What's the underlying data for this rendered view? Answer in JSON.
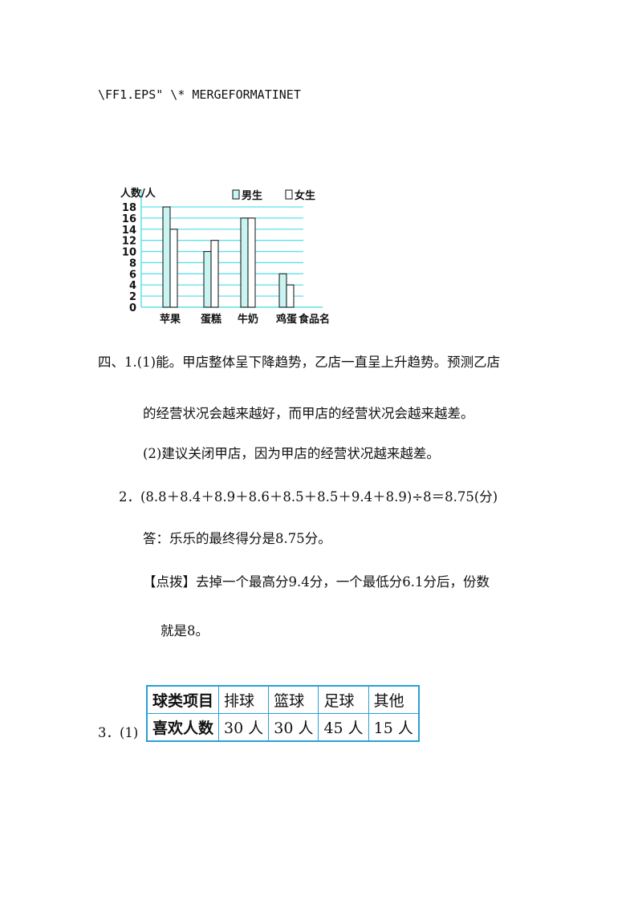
{
  "field_code": "\\FF1.EPS\" \\* MERGEFORMATINET",
  "chart_data": {
    "type": "bar",
    "ylabel": "人数/人",
    "xlabel": "食品名",
    "categories": [
      "苹果",
      "蛋糕",
      "牛奶",
      "鸡蛋"
    ],
    "series": [
      {
        "name": "男生",
        "values": [
          18,
          10,
          16,
          6
        ],
        "color": "#c8f4f2"
      },
      {
        "name": "女生",
        "values": [
          14,
          12,
          16,
          4
        ],
        "color": "#ffffff"
      }
    ],
    "yticks": [
      0,
      2,
      4,
      6,
      8,
      10,
      12,
      14,
      16,
      18
    ],
    "ylim": [
      0,
      18
    ],
    "grid": true,
    "grid_color": "#5ee0ea",
    "legend": "top-right"
  },
  "answers": {
    "q4_1_1a": "四、1.(1)能。甲店整体呈下降趋势，乙店一直呈上升趋势。预测乙店",
    "q4_1_1b": "的经营状况会越来越好，而甲店的经营状况会越来越差。",
    "q4_1_2": "(2)建议关闭甲店，因为甲店的经营状况越来越差。",
    "q4_2": "2．(8.8＋8.4＋8.9＋8.6＋8.5＋8.5＋9.4＋8.9)÷8＝8.75(分)",
    "q4_2_answer": "答：乐乐的最终得分是8.75分。",
    "q4_2_tip_a": "【点拨】去掉一个最高分9.4分，一个最低分6.1分后，份数",
    "q4_2_tip_b": "就是8。",
    "q4_3_label": "3．(1)"
  },
  "table": {
    "rows": [
      [
        "球类项目",
        "排球",
        "篮球",
        "足球",
        "其他"
      ],
      [
        "喜欢人数",
        "30 人",
        "30 人",
        "45 人",
        "15 人"
      ]
    ],
    "border_color": "#2a9fd6"
  }
}
